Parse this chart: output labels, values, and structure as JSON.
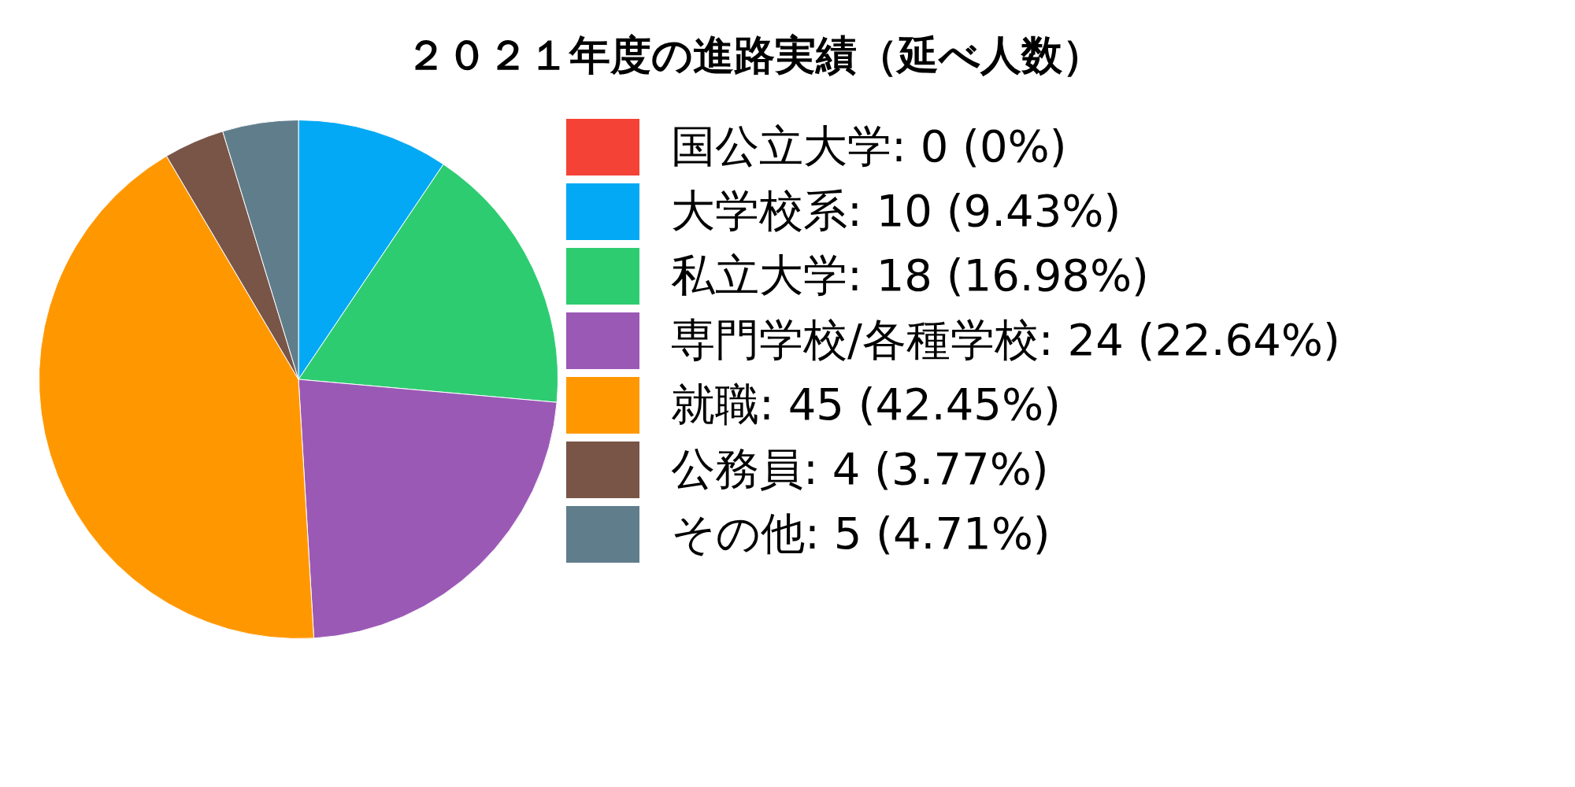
{
  "chart_data": {
    "type": "pie",
    "title": "２０２１年度の進路実績（延べ人数）",
    "categories": [
      "国公立大学",
      "大学校系",
      "私立大学",
      "専門学校/各種学校",
      "就職",
      "公務員",
      "その他"
    ],
    "values": [
      0,
      10,
      18,
      24,
      45,
      4,
      5
    ],
    "value_labels": [
      "0 (0%)",
      "10 (9.43%)",
      "18 (16.98%)",
      "24 (22.64%)",
      "45 (42.45%)",
      "4 (3.77%)",
      "5 (4.71%)"
    ],
    "colors": [
      "#f44336",
      "#03a9f4",
      "#2ecc71",
      "#9b59b6",
      "#ff9800",
      "#795548",
      "#607d8b"
    ],
    "legend": "right"
  }
}
